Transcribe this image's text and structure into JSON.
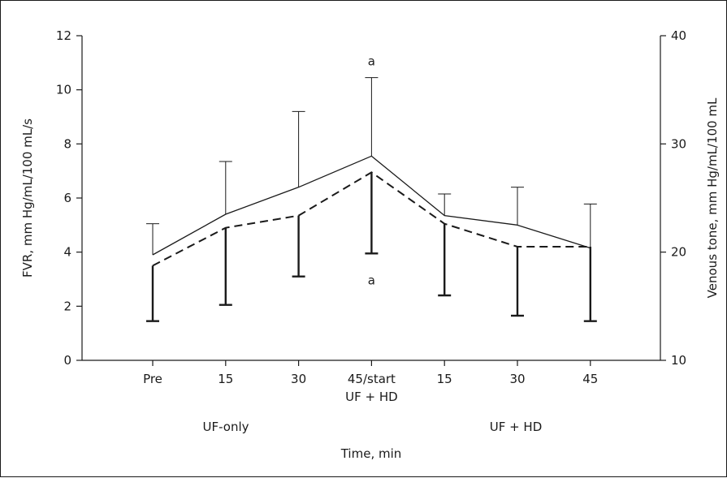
{
  "chart_data": {
    "type": "line",
    "categories": [
      "Pre",
      "15",
      "30",
      "45/start",
      "15",
      "30",
      "45"
    ],
    "category_sublabels": [
      "",
      "",
      "",
      "UF + HD",
      "",
      "",
      ""
    ],
    "phase_labels": [
      "UF-only",
      "UF + HD"
    ],
    "xlabel": "Time, min",
    "ylabel_left": "FVR, mm Hg/mL/100 mL/s",
    "ylabel_right": "Venous tone, mm Hg/mL/100 mL",
    "ylim_left": [
      0,
      12
    ],
    "yticks_left": [
      0,
      2,
      4,
      6,
      8,
      10,
      12
    ],
    "ylim_right": [
      10,
      40
    ],
    "yticks_right": [
      10,
      20,
      30,
      40
    ],
    "series": [
      {
        "style": "solid",
        "axis": "left",
        "values": [
          3.9,
          5.4,
          6.4,
          7.55,
          5.35,
          5.0,
          4.15
        ],
        "error_upper": [
          5.05,
          7.35,
          9.2,
          10.45,
          6.15,
          6.4,
          5.78
        ]
      },
      {
        "style": "dashed",
        "axis": "left",
        "values": [
          3.5,
          4.9,
          5.35,
          6.95,
          5.05,
          4.2,
          4.2
        ],
        "error_lower": [
          1.45,
          2.05,
          3.1,
          3.95,
          2.4,
          1.65,
          1.45
        ]
      }
    ],
    "annotations": [
      {
        "text": "a",
        "category_index": 3,
        "y": 11.05
      },
      {
        "text": "a",
        "category_index": 3,
        "y": 2.95
      }
    ],
    "grid": false,
    "legend": "none"
  }
}
